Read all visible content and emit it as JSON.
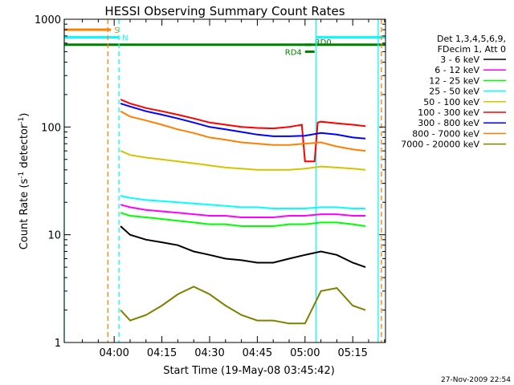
{
  "chart_data": {
    "type": "line",
    "title": "HESSI Observing Summary Count Rates",
    "xlabel": "Start Time (19-May-08 03:45:42)",
    "ylabel_prefix": "Count Rate (s",
    "ylabel_sup1": "-1",
    "ylabel_mid": " detector",
    "ylabel_sup2": "-1",
    "ylabel_suffix": ")",
    "footer": "27-Nov-2009 22:54",
    "x_range_minutes": [
      -15.7,
      85.3
    ],
    "y_scale": "log",
    "ylim": [
      1,
      1000
    ],
    "x_ticks": [
      {
        "minutes": 0,
        "label": "04:00"
      },
      {
        "minutes": 15,
        "label": "04:15"
      },
      {
        "minutes": 30,
        "label": "04:30"
      },
      {
        "minutes": 45,
        "label": "04:45"
      },
      {
        "minutes": 60,
        "label": "05:00"
      },
      {
        "minutes": 75,
        "label": "05:15"
      }
    ],
    "y_ticks": [
      {
        "value": 1,
        "label": "1"
      },
      {
        "value": 10,
        "label": "10"
      },
      {
        "value": 100,
        "label": "100"
      },
      {
        "value": 1000,
        "label": "1000"
      }
    ],
    "legend_header": [
      "Det 1,3,4,5,6,9,",
      "FDecim 1, Att 0"
    ],
    "series": [
      {
        "name": "3 - 6 keV",
        "color": "#000000",
        "x": [
          2,
          5,
          10,
          15,
          20,
          25,
          30,
          35,
          40,
          45,
          50,
          55,
          60,
          65,
          70,
          75,
          79
        ],
        "values": [
          12,
          10,
          9,
          8.5,
          8,
          7,
          6.5,
          6,
          5.8,
          5.5,
          5.5,
          6,
          6.5,
          7,
          6.5,
          5.5,
          5
        ]
      },
      {
        "name": "6 - 12 keV",
        "color": "#ff00ff",
        "x": [
          2,
          5,
          10,
          15,
          20,
          25,
          30,
          35,
          40,
          45,
          50,
          55,
          60,
          65,
          70,
          75,
          79
        ],
        "values": [
          19,
          18,
          17,
          16.5,
          16,
          15.5,
          15,
          15,
          14.5,
          14.5,
          14.5,
          15,
          15,
          15.5,
          15.5,
          15,
          15
        ]
      },
      {
        "name": "12 - 25 keV",
        "color": "#00ff00",
        "x": [
          2,
          5,
          10,
          15,
          20,
          25,
          30,
          35,
          40,
          45,
          50,
          55,
          60,
          65,
          70,
          75,
          79
        ],
        "values": [
          16,
          15,
          14.5,
          14,
          13.5,
          13,
          12.5,
          12.5,
          12,
          12,
          12,
          12.5,
          12.5,
          13,
          13,
          12.5,
          12
        ]
      },
      {
        "name": "25 - 50 keV",
        "color": "#00ffff",
        "x": [
          2,
          5,
          10,
          15,
          20,
          25,
          30,
          35,
          40,
          45,
          50,
          55,
          60,
          65,
          70,
          75,
          79
        ],
        "values": [
          23,
          22,
          21,
          20.5,
          20,
          19.5,
          19,
          18.5,
          18,
          18,
          17.5,
          17.5,
          17.5,
          18,
          18,
          17.5,
          17.5
        ]
      },
      {
        "name": "50 - 100 keV",
        "color": "#d4c400",
        "x": [
          2,
          5,
          10,
          15,
          20,
          25,
          30,
          35,
          40,
          45,
          50,
          55,
          60,
          65,
          70,
          75,
          79
        ],
        "values": [
          60,
          55,
          52,
          50,
          48,
          46,
          44,
          42,
          41,
          40,
          40,
          40,
          41,
          43,
          42,
          41,
          40
        ]
      },
      {
        "name": "100 - 300 keV",
        "color": "#ff0000",
        "x": [
          2,
          5,
          10,
          15,
          20,
          25,
          30,
          35,
          40,
          45,
          50,
          55,
          59,
          60,
          63,
          64,
          65,
          70,
          75,
          79
        ],
        "values": [
          180,
          165,
          150,
          140,
          130,
          120,
          110,
          105,
          100,
          98,
          97,
          100,
          105,
          48,
          48,
          110,
          112,
          108,
          105,
          102
        ]
      },
      {
        "name": "300 - 800 keV",
        "color": "#0000ff",
        "x": [
          2,
          5,
          10,
          15,
          20,
          25,
          30,
          35,
          40,
          45,
          50,
          55,
          60,
          65,
          70,
          75,
          79
        ],
        "values": [
          165,
          155,
          140,
          130,
          120,
          110,
          100,
          95,
          90,
          85,
          82,
          82,
          83,
          88,
          85,
          80,
          78
        ]
      },
      {
        "name": "800 - 7000 keV",
        "color": "#ff8000",
        "x": [
          2,
          5,
          10,
          15,
          20,
          25,
          30,
          35,
          40,
          45,
          50,
          55,
          60,
          65,
          70,
          75,
          79
        ],
        "values": [
          140,
          125,
          115,
          105,
          95,
          88,
          80,
          76,
          72,
          70,
          68,
          68,
          70,
          72,
          66,
          62,
          60
        ]
      },
      {
        "name": "7000 - 20000 keV",
        "color": "#808000",
        "x": [
          2,
          5,
          10,
          15,
          20,
          25,
          30,
          35,
          40,
          45,
          50,
          55,
          60,
          65,
          70,
          75,
          79
        ],
        "values": [
          2,
          1.6,
          1.8,
          2.2,
          2.8,
          3.3,
          2.8,
          2.2,
          1.8,
          1.6,
          1.6,
          1.5,
          1.5,
          3,
          3.2,
          2.2,
          2
        ]
      }
    ],
    "flags": [
      {
        "name": "S",
        "color": "#ff8000",
        "y": 800,
        "x_start": -15.7,
        "x_end": -1
      },
      {
        "name": "N",
        "color": "#00ffff",
        "y": 680,
        "x_start": -15.7,
        "x_end": 1.5
      },
      {
        "name": "",
        "color": "#008000",
        "y": 580,
        "x_start": -15.7,
        "x_end": 85.3
      },
      {
        "name": "RD0",
        "color": "#008000",
        "y": 580,
        "x_start": 60,
        "x_end": 62
      },
      {
        "name": "RD4",
        "color": "#008000",
        "y": 500,
        "x_start": 60,
        "x_end": 63
      },
      {
        "name": "",
        "color": "#00ffff",
        "y": 680,
        "x_start": 63.5,
        "x_end": 85.3
      }
    ],
    "vlines": [
      {
        "x": -15.7,
        "color": "#00ffff",
        "style": "solid"
      },
      {
        "x": -2,
        "color": "#ff8000",
        "style": "dashed"
      },
      {
        "x": 1.5,
        "color": "#00ffff",
        "style": "dashed"
      },
      {
        "x": 63.5,
        "color": "#00ffff",
        "style": "solid"
      },
      {
        "x": 83,
        "color": "#00ffff",
        "style": "solid"
      },
      {
        "x": 84,
        "color": "#ff8000",
        "style": "dashed"
      }
    ]
  }
}
